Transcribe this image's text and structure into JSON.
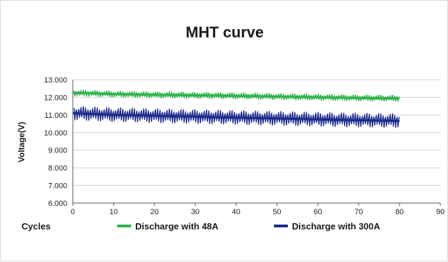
{
  "chart_data": {
    "type": "line",
    "title": "MHT curve",
    "xlabel": "Cycles",
    "ylabel": "Voltage(V)",
    "xlim": [
      0,
      90
    ],
    "ylim": [
      6.0,
      13.0
    ],
    "x_ticks": [
      "0",
      "10",
      "20",
      "30",
      "40",
      "50",
      "60",
      "70",
      "80",
      "90"
    ],
    "y_ticks": [
      "6.000",
      "7.000",
      "8.000",
      "9.000",
      "10.000",
      "11.000",
      "12.000",
      "13.000"
    ],
    "grid": "horizontal",
    "legend_position": "bottom",
    "x": [
      0,
      5,
      10,
      15,
      20,
      25,
      30,
      35,
      40,
      45,
      50,
      55,
      60,
      65,
      70,
      75,
      80
    ],
    "series": [
      {
        "name": "Discharge with 48A",
        "color": "#2db34a",
        "values": [
          12.25,
          12.22,
          12.18,
          12.16,
          12.14,
          12.13,
          12.11,
          12.1,
          12.08,
          12.06,
          12.04,
          12.02,
          12.0,
          11.98,
          11.96,
          11.95,
          11.94
        ],
        "band": [
          12.0,
          12.4
        ]
      },
      {
        "name": "Discharge with 300A",
        "color": "#1c2a8c",
        "values": [
          11.1,
          11.05,
          11.0,
          10.98,
          10.95,
          10.92,
          10.9,
          10.87,
          10.85,
          10.82,
          10.8,
          10.77,
          10.75,
          10.72,
          10.7,
          10.68,
          10.66
        ],
        "band": [
          10.4,
          11.3
        ]
      }
    ]
  }
}
